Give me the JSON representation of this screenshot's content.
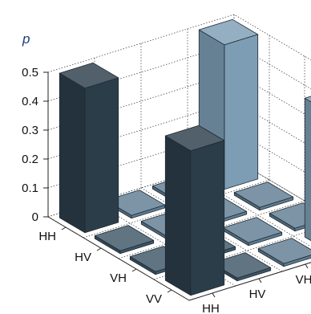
{
  "chart_data": {
    "type": "bar3d",
    "title": "",
    "zlabel": "p",
    "zlim": [
      0,
      0.5
    ],
    "zticks": [
      "0",
      "0.1",
      "0.2",
      "0.3",
      "0.4",
      "0.5"
    ],
    "row_labels": [
      "HH",
      "HV",
      "VH",
      "VV"
    ],
    "col_labels": [
      "HH",
      "HV",
      "VH",
      "VV"
    ],
    "grid": true,
    "bars": [
      {
        "row": "HH",
        "col": "HH",
        "value": 0.5,
        "color": "#2c3d4a"
      },
      {
        "row": "HH",
        "col": "HV",
        "value": 0.01,
        "color": "#5f7d92"
      },
      {
        "row": "HH",
        "col": "VH",
        "value": 0.01,
        "color": "#5f7d92"
      },
      {
        "row": "HH",
        "col": "VV",
        "value": 0.5,
        "color": "#7d9db4"
      },
      {
        "row": "HV",
        "col": "HH",
        "value": 0.01,
        "color": "#3d5566"
      },
      {
        "row": "HV",
        "col": "HV",
        "value": 0.01,
        "color": "#5f7d92"
      },
      {
        "row": "HV",
        "col": "VH",
        "value": 0.01,
        "color": "#5f7d92"
      },
      {
        "row": "HV",
        "col": "VV",
        "value": 0.01,
        "color": "#5f7d92"
      },
      {
        "row": "VH",
        "col": "HH",
        "value": 0.01,
        "color": "#3d5566"
      },
      {
        "row": "VH",
        "col": "HV",
        "value": 0.01,
        "color": "#3d5566"
      },
      {
        "row": "VH",
        "col": "VH",
        "value": 0.01,
        "color": "#5f7d92"
      },
      {
        "row": "VH",
        "col": "VV",
        "value": 0.01,
        "color": "#5f7d92"
      },
      {
        "row": "VV",
        "col": "HH",
        "value": 0.5,
        "color": "#2c3d4a"
      },
      {
        "row": "VV",
        "col": "HV",
        "value": 0.01,
        "color": "#3d5566"
      },
      {
        "row": "VV",
        "col": "VH",
        "value": 0.01,
        "color": "#5f7d92"
      },
      {
        "row": "VV",
        "col": "VV",
        "value": 0.48,
        "color": "#7d9db4"
      }
    ]
  }
}
